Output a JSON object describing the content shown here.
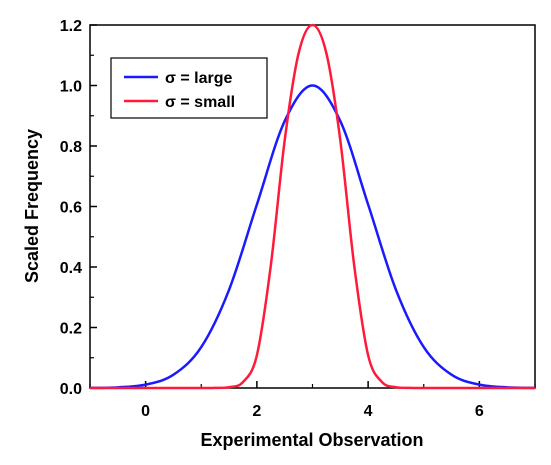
{
  "chart_data": {
    "type": "line",
    "title": "",
    "xlabel": "Experimental Observation",
    "ylabel": "Scaled Frequency",
    "xlim": [
      -1,
      7
    ],
    "ylim": [
      0.0,
      1.2
    ],
    "xticks": [
      0,
      2,
      4,
      6
    ],
    "yticks": [
      0.0,
      0.2,
      0.4,
      0.6,
      0.8,
      1.0,
      1.2
    ],
    "xtick_labels": [
      "0",
      "2",
      "4",
      "6"
    ],
    "ytick_labels": [
      "0.0",
      "0.2",
      "0.4",
      "0.6",
      "0.8",
      "1.0",
      "1.2"
    ],
    "grid": false,
    "legend_position": "top-left",
    "series": [
      {
        "name": "σ = large",
        "color": "#1a1aff",
        "x": [
          -1.0,
          -0.5,
          0.0,
          0.5,
          1.0,
          1.5,
          2.0,
          2.5,
          3.0,
          3.5,
          4.0,
          4.5,
          5.0,
          5.5,
          6.0,
          6.5,
          7.0
        ],
        "y": [
          0.0003,
          0.0022,
          0.0111,
          0.0439,
          0.1353,
          0.3247,
          0.6065,
          0.8825,
          1.0,
          0.8825,
          0.6065,
          0.3247,
          0.1353,
          0.0439,
          0.0111,
          0.0022,
          0.0003
        ]
      },
      {
        "name": "σ = small",
        "color": "#ff1a3a",
        "x": [
          1.0,
          1.25,
          1.5,
          1.75,
          2.0,
          2.25,
          2.5,
          2.75,
          3.0,
          3.25,
          3.5,
          3.75,
          4.0,
          4.25,
          4.5,
          4.75,
          5.0
        ],
        "y": [
          0.0,
          0.0003,
          0.0027,
          0.0196,
          0.1083,
          0.4045,
          0.8186,
          1.1063,
          1.2,
          1.1063,
          0.8186,
          0.4045,
          0.1083,
          0.0196,
          0.0027,
          0.0003,
          0.0
        ]
      }
    ]
  }
}
